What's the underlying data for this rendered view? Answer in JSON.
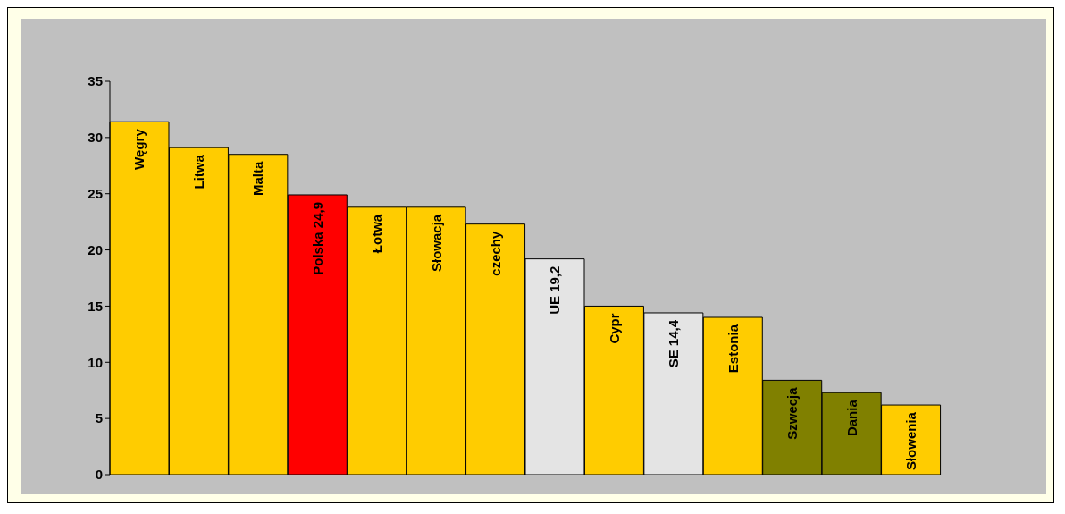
{
  "chart_data": {
    "type": "bar",
    "categories": [
      "Węgry",
      "Litwa",
      "Malta",
      "Polska 24,9",
      "Łotwa",
      "Słowacja",
      "czechy",
      "UE 19,2",
      "Cypr",
      "SE 14,4",
      "Estonia",
      "Szwecja",
      "Dania",
      "Słowenia"
    ],
    "values": [
      31.4,
      29.1,
      28.5,
      24.9,
      23.8,
      23.8,
      22.3,
      19.2,
      15.0,
      14.4,
      14.0,
      8.4,
      7.3,
      6.2
    ],
    "colors": [
      "#ffcc00",
      "#ffcc00",
      "#ffcc00",
      "#ff0000",
      "#ffcc00",
      "#ffcc00",
      "#ffcc00",
      "#e4e4e4",
      "#ffcc00",
      "#e4e4e4",
      "#ffcc00",
      "#808000",
      "#808000",
      "#ffcc00"
    ],
    "ylim": [
      0,
      35
    ],
    "yticks": [
      0,
      5,
      10,
      15,
      20,
      25,
      30,
      35
    ]
  }
}
